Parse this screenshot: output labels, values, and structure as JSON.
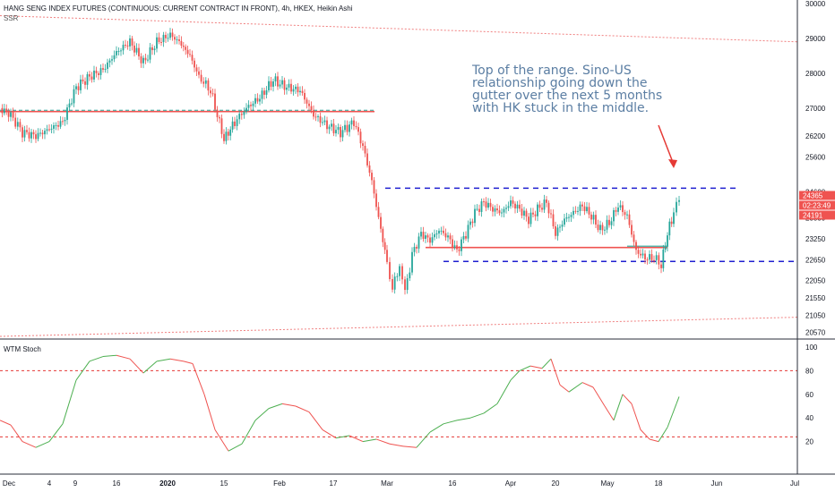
{
  "header": {
    "title": "HANG SENG INDEX FUTURES (CONTINUOUS: CURRENT CONTRACT IN FRONT), 4h, HKEX, Heikin Ashi",
    "indicator_short": "SSR"
  },
  "annotation": {
    "text": "Top of the range.  Sino-US relationship going down the gutter over the next 5 months with HK stuck in the middle."
  },
  "lower_pane": {
    "title": "WTM Stoch"
  },
  "price_tags": {
    "top": "24365",
    "countdown": "02:23:49",
    "low": "24191"
  },
  "colors": {
    "up": "#26a69a",
    "down": "#ef5350",
    "channel": "#1f1fd0",
    "trend": "#f08080",
    "stoch_up": "#4caf50",
    "stoch_down": "#ef5350",
    "text": "#5b7ea3"
  },
  "chart_data": [
    {
      "type": "line",
      "name": "price (Heikin Ashi candles, approximate closes)",
      "x": [
        "Dec",
        "4",
        "9",
        "16",
        "2020",
        "15",
        "Feb",
        "17",
        "Mar",
        "16",
        "Apr",
        "20",
        "May",
        "18",
        "Jun"
      ],
      "y_axis_ticks": [
        30000,
        29000,
        28000,
        27000,
        26200,
        25600,
        24600,
        23850,
        23250,
        22650,
        22050,
        21550,
        21050,
        20570
      ],
      "ylim": [
        20400,
        30100
      ],
      "points": [
        [
          0,
          27000
        ],
        [
          12,
          26800
        ],
        [
          25,
          26300
        ],
        [
          40,
          26200
        ],
        [
          55,
          26400
        ],
        [
          70,
          26600
        ],
        [
          85,
          27600
        ],
        [
          100,
          27900
        ],
        [
          115,
          28100
        ],
        [
          130,
          28600
        ],
        [
          145,
          28900
        ],
        [
          160,
          28300
        ],
        [
          175,
          28900
        ],
        [
          190,
          29100
        ],
        [
          200,
          28900
        ],
        [
          212,
          28500
        ],
        [
          222,
          27900
        ],
        [
          235,
          27500
        ],
        [
          250,
          26100
        ],
        [
          262,
          26600
        ],
        [
          275,
          27000
        ],
        [
          290,
          27300
        ],
        [
          305,
          27800
        ],
        [
          320,
          27600
        ],
        [
          335,
          27500
        ],
        [
          350,
          26800
        ],
        [
          365,
          26500
        ],
        [
          380,
          26300
        ],
        [
          395,
          26600
        ],
        [
          405,
          25900
        ],
        [
          415,
          24900
        ],
        [
          425,
          23500
        ],
        [
          432,
          22600
        ],
        [
          438,
          21800
        ],
        [
          446,
          22500
        ],
        [
          452,
          21700
        ],
        [
          460,
          22800
        ],
        [
          470,
          23400
        ],
        [
          480,
          23200
        ],
        [
          490,
          23500
        ],
        [
          500,
          23300
        ],
        [
          510,
          22900
        ],
        [
          520,
          23400
        ],
        [
          530,
          24000
        ],
        [
          540,
          24300
        ],
        [
          550,
          24100
        ],
        [
          560,
          24000
        ],
        [
          570,
          24300
        ],
        [
          580,
          24100
        ],
        [
          590,
          23800
        ],
        [
          600,
          24100
        ],
        [
          610,
          24300
        ],
        [
          620,
          23400
        ],
        [
          630,
          23800
        ],
        [
          640,
          24000
        ],
        [
          650,
          24200
        ],
        [
          660,
          23900
        ],
        [
          670,
          23500
        ],
        [
          680,
          23700
        ],
        [
          690,
          24200
        ],
        [
          700,
          23900
        ],
        [
          710,
          22900
        ],
        [
          720,
          22700
        ],
        [
          730,
          22700
        ],
        [
          738,
          22500
        ],
        [
          745,
          23400
        ],
        [
          752,
          24000
        ],
        [
          758,
          24365
        ]
      ],
      "levels": {
        "channel_top": 24700,
        "channel_bottom": 22600,
        "mid_line": 23000,
        "support_line": 26900,
        "upper_trend": [
          [
            0,
            29650
          ],
          [
            890,
            28900
          ]
        ],
        "lower_trend": [
          [
            0,
            20450
          ],
          [
            890,
            21000
          ]
        ]
      }
    },
    {
      "type": "line",
      "name": "WTM Stoch",
      "ylim": [
        0,
        100
      ],
      "y_axis_ticks": [
        100,
        80,
        60,
        40,
        20
      ],
      "overbought": 80,
      "oversold": 24,
      "values": [
        [
          0,
          38
        ],
        [
          12,
          34
        ],
        [
          25,
          20
        ],
        [
          40,
          15
        ],
        [
          55,
          20
        ],
        [
          70,
          35
        ],
        [
          85,
          72
        ],
        [
          100,
          88
        ],
        [
          115,
          92
        ],
        [
          130,
          93
        ],
        [
          145,
          90
        ],
        [
          160,
          78
        ],
        [
          175,
          88
        ],
        [
          190,
          90
        ],
        [
          205,
          88
        ],
        [
          215,
          86
        ],
        [
          228,
          60
        ],
        [
          240,
          30
        ],
        [
          255,
          12
        ],
        [
          270,
          18
        ],
        [
          285,
          38
        ],
        [
          300,
          48
        ],
        [
          315,
          52
        ],
        [
          330,
          50
        ],
        [
          345,
          45
        ],
        [
          360,
          30
        ],
        [
          375,
          23
        ],
        [
          390,
          25
        ],
        [
          405,
          20
        ],
        [
          420,
          22
        ],
        [
          435,
          18
        ],
        [
          450,
          16
        ],
        [
          465,
          15
        ],
        [
          480,
          28
        ],
        [
          495,
          35
        ],
        [
          510,
          38
        ],
        [
          525,
          40
        ],
        [
          540,
          44
        ],
        [
          555,
          52
        ],
        [
          570,
          72
        ],
        [
          580,
          80
        ],
        [
          592,
          84
        ],
        [
          605,
          82
        ],
        [
          615,
          90
        ],
        [
          625,
          68
        ],
        [
          635,
          62
        ],
        [
          650,
          70
        ],
        [
          662,
          66
        ],
        [
          675,
          50
        ],
        [
          685,
          38
        ],
        [
          695,
          60
        ],
        [
          705,
          52
        ],
        [
          715,
          30
        ],
        [
          725,
          22
        ],
        [
          735,
          20
        ],
        [
          745,
          32
        ],
        [
          755,
          52
        ],
        [
          758,
          58
        ]
      ]
    }
  ]
}
